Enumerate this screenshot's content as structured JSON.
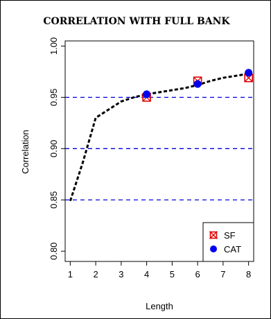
{
  "chart_data": {
    "type": "line",
    "title": "CORRELATION WITH FULL BANK",
    "xlabel": "Length",
    "ylabel": "Correlation",
    "xlim": [
      0.8,
      8.2
    ],
    "ylim": [
      0.79,
      1.005
    ],
    "x_ticks": [
      1,
      2,
      3,
      4,
      5,
      6,
      7,
      8
    ],
    "x_tick_labels": [
      "1",
      "2",
      "3",
      "4",
      "5",
      "6",
      "7",
      "8"
    ],
    "y_ticks": [
      0.8,
      0.85,
      0.9,
      0.95,
      1.0
    ],
    "y_tick_labels": [
      "0.80",
      "0.85",
      "0.90",
      "0.95",
      "1.00"
    ],
    "reference_lines": [
      0.85,
      0.9,
      0.95
    ],
    "curve": {
      "x": [
        1.0,
        1.5,
        2.0,
        2.5,
        3.0,
        3.5,
        4.0,
        4.5,
        5.0,
        5.5,
        6.0,
        6.5,
        7.0,
        7.5,
        8.0
      ],
      "y": [
        0.849,
        0.887,
        0.93,
        0.938,
        0.946,
        0.95,
        0.953,
        0.955,
        0.957,
        0.959,
        0.962,
        0.966,
        0.969,
        0.971,
        0.973
      ]
    },
    "series": [
      {
        "name": "SF",
        "marker": "square-cross",
        "color": "#e00000",
        "x": [
          4,
          6,
          8
        ],
        "y": [
          0.95,
          0.966,
          0.969
        ]
      },
      {
        "name": "CAT",
        "marker": "circle",
        "color": "#0000ee",
        "x": [
          4,
          6,
          8
        ],
        "y": [
          0.953,
          0.963,
          0.974
        ]
      }
    ],
    "legend_position": "bottom-right",
    "grid": false,
    "colors": {
      "reference": "#0000dd",
      "curve": "#000000"
    }
  }
}
